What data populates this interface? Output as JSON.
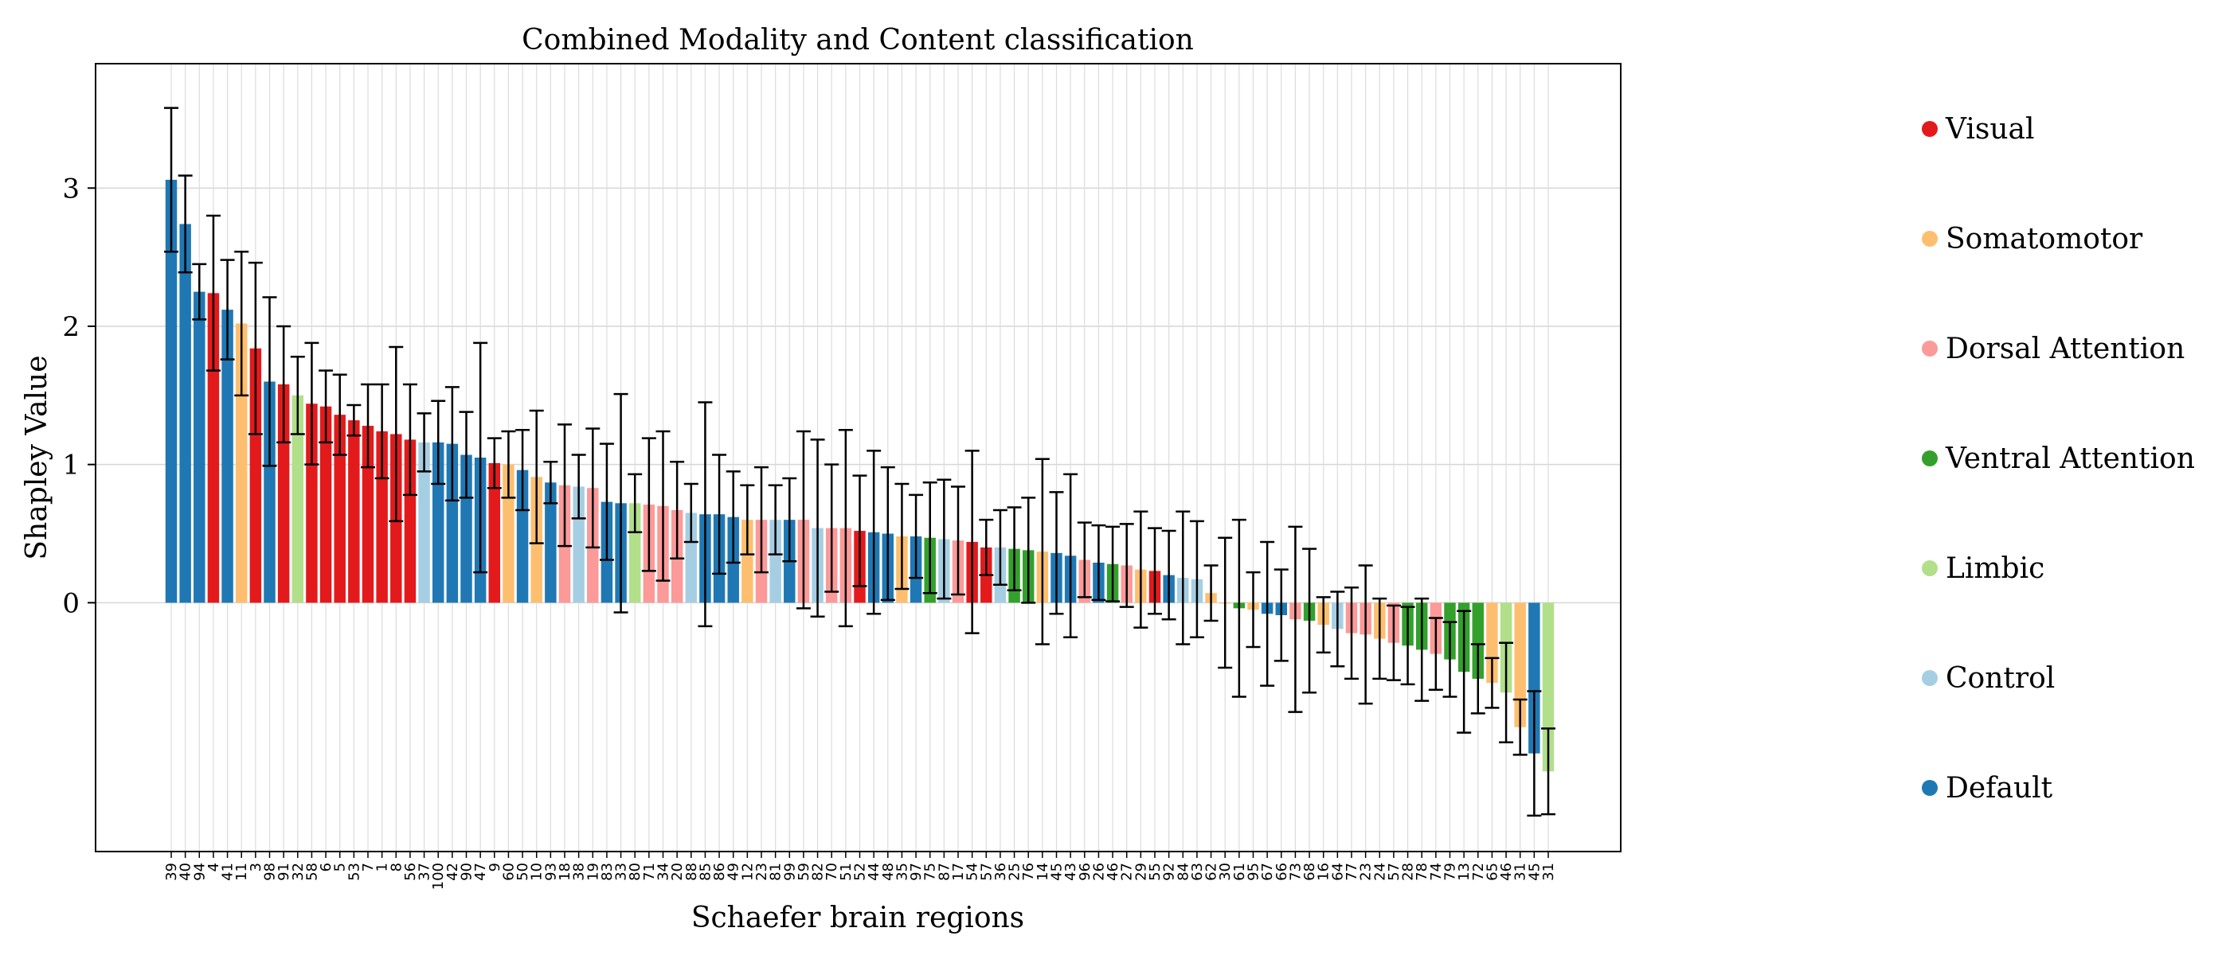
{
  "chart_data": {
    "type": "bar",
    "title": "Combined Modality and Content classification",
    "xlabel": "Schaefer brain regions",
    "ylabel": "Shapley Value",
    "ylim": [
      -1.8,
      3.9
    ],
    "yticks": [
      0,
      1,
      2,
      3
    ],
    "grid": true,
    "legend_position": "right",
    "legend": [
      {
        "label": "Visual",
        "color": "#e31a1c"
      },
      {
        "label": "Somatomotor",
        "color": "#fdbf6f"
      },
      {
        "label": "Dorsal Attention",
        "color": "#fb9a99"
      },
      {
        "label": "Ventral Attention",
        "color": "#33a02c"
      },
      {
        "label": "Limbic",
        "color": "#b2df8a"
      },
      {
        "label": "Control",
        "color": "#a6cee3"
      },
      {
        "label": "Default",
        "color": "#1f78b4"
      }
    ],
    "bars": [
      {
        "label": "39",
        "network": "Default",
        "value": 3.06,
        "err": 0.52
      },
      {
        "label": "40",
        "network": "Default",
        "value": 2.74,
        "err": 0.35
      },
      {
        "label": "94",
        "network": "Default",
        "value": 2.25,
        "err": 0.2
      },
      {
        "label": "4",
        "network": "Visual",
        "value": 2.24,
        "err": 0.56
      },
      {
        "label": "41",
        "network": "Default",
        "value": 2.12,
        "err": 0.36
      },
      {
        "label": "11",
        "network": "Somatomotor",
        "value": 2.02,
        "err": 0.52
      },
      {
        "label": "3",
        "network": "Visual",
        "value": 1.84,
        "err": 0.62
      },
      {
        "label": "98",
        "network": "Default",
        "value": 1.6,
        "err": 0.61
      },
      {
        "label": "91",
        "network": "Visual",
        "value": 1.58,
        "err": 0.42
      },
      {
        "label": "32",
        "network": "Limbic",
        "value": 1.5,
        "err": 0.28
      },
      {
        "label": "58",
        "network": "Visual",
        "value": 1.44,
        "err": 0.44
      },
      {
        "label": "6",
        "network": "Visual",
        "value": 1.42,
        "err": 0.26
      },
      {
        "label": "5",
        "network": "Visual",
        "value": 1.36,
        "err": 0.29
      },
      {
        "label": "53",
        "network": "Visual",
        "value": 1.32,
        "err": 0.11
      },
      {
        "label": "7",
        "network": "Visual",
        "value": 1.28,
        "err": 0.3
      },
      {
        "label": "1",
        "network": "Visual",
        "value": 1.24,
        "err": 0.34
      },
      {
        "label": "8",
        "network": "Visual",
        "value": 1.22,
        "err": 0.63
      },
      {
        "label": "56",
        "network": "Visual",
        "value": 1.18,
        "err": 0.4
      },
      {
        "label": "37",
        "network": "Control",
        "value": 1.16,
        "err": 0.21
      },
      {
        "label": "100",
        "network": "Default",
        "value": 1.16,
        "err": 0.3
      },
      {
        "label": "42",
        "network": "Default",
        "value": 1.15,
        "err": 0.41
      },
      {
        "label": "90",
        "network": "Default",
        "value": 1.07,
        "err": 0.31
      },
      {
        "label": "47",
        "network": "Default",
        "value": 1.05,
        "err": 0.83
      },
      {
        "label": "9",
        "network": "Visual",
        "value": 1.01,
        "err": 0.18
      },
      {
        "label": "60",
        "network": "Somatomotor",
        "value": 1.0,
        "err": 0.24
      },
      {
        "label": "50",
        "network": "Default",
        "value": 0.96,
        "err": 0.29
      },
      {
        "label": "10",
        "network": "Somatomotor",
        "value": 0.91,
        "err": 0.48
      },
      {
        "label": "93",
        "network": "Default",
        "value": 0.87,
        "err": 0.15
      },
      {
        "label": "18",
        "network": "Dorsal Attention",
        "value": 0.85,
        "err": 0.44
      },
      {
        "label": "38",
        "network": "Control",
        "value": 0.84,
        "err": 0.23
      },
      {
        "label": "19",
        "network": "Dorsal Attention",
        "value": 0.83,
        "err": 0.43
      },
      {
        "label": "83",
        "network": "Default",
        "value": 0.73,
        "err": 0.42
      },
      {
        "label": "33",
        "network": "Default",
        "value": 0.72,
        "err": 0.79
      },
      {
        "label": "80",
        "network": "Limbic",
        "value": 0.72,
        "err": 0.21
      },
      {
        "label": "71",
        "network": "Dorsal Attention",
        "value": 0.71,
        "err": 0.48
      },
      {
        "label": "34",
        "network": "Dorsal Attention",
        "value": 0.7,
        "err": 0.54
      },
      {
        "label": "20",
        "network": "Dorsal Attention",
        "value": 0.67,
        "err": 0.35
      },
      {
        "label": "88",
        "network": "Control",
        "value": 0.65,
        "err": 0.21
      },
      {
        "label": "85",
        "network": "Default",
        "value": 0.64,
        "err": 0.81
      },
      {
        "label": "86",
        "network": "Default",
        "value": 0.64,
        "err": 0.43
      },
      {
        "label": "49",
        "network": "Default",
        "value": 0.62,
        "err": 0.33
      },
      {
        "label": "12",
        "network": "Somatomotor",
        "value": 0.6,
        "err": 0.25
      },
      {
        "label": "23",
        "network": "Dorsal Attention",
        "value": 0.6,
        "err": 0.38
      },
      {
        "label": "81",
        "network": "Control",
        "value": 0.6,
        "err": 0.25
      },
      {
        "label": "99",
        "network": "Default",
        "value": 0.6,
        "err": 0.3
      },
      {
        "label": "59",
        "network": "Dorsal Attention",
        "value": 0.6,
        "err": 0.64
      },
      {
        "label": "82",
        "network": "Control",
        "value": 0.54,
        "err": 0.64
      },
      {
        "label": "70",
        "network": "Dorsal Attention",
        "value": 0.54,
        "err": 0.46
      },
      {
        "label": "51",
        "network": "Dorsal Attention",
        "value": 0.54,
        "err": 0.71
      },
      {
        "label": "52",
        "network": "Visual",
        "value": 0.52,
        "err": 0.4
      },
      {
        "label": "44",
        "network": "Default",
        "value": 0.51,
        "err": 0.59
      },
      {
        "label": "48",
        "network": "Default",
        "value": 0.5,
        "err": 0.48
      },
      {
        "label": "35",
        "network": "Somatomotor",
        "value": 0.48,
        "err": 0.38
      },
      {
        "label": "97",
        "network": "Default",
        "value": 0.48,
        "err": 0.3
      },
      {
        "label": "75",
        "network": "Ventral Attention",
        "value": 0.47,
        "err": 0.4
      },
      {
        "label": "87",
        "network": "Control",
        "value": 0.46,
        "err": 0.43
      },
      {
        "label": "17",
        "network": "Dorsal Attention",
        "value": 0.45,
        "err": 0.39
      },
      {
        "label": "54",
        "network": "Visual",
        "value": 0.44,
        "err": 0.66
      },
      {
        "label": "57",
        "network": "Visual",
        "value": 0.4,
        "err": 0.2
      },
      {
        "label": "36",
        "network": "Control",
        "value": 0.4,
        "err": 0.27
      },
      {
        "label": "25",
        "network": "Ventral Attention",
        "value": 0.39,
        "err": 0.3
      },
      {
        "label": "76",
        "network": "Ventral Attention",
        "value": 0.38,
        "err": 0.38
      },
      {
        "label": "14",
        "network": "Somatomotor",
        "value": 0.37,
        "err": 0.67
      },
      {
        "label": "45",
        "network": "Default",
        "value": 0.36,
        "err": 0.44
      },
      {
        "label": "43",
        "network": "Default",
        "value": 0.34,
        "err": 0.59
      },
      {
        "label": "96",
        "network": "Dorsal Attention",
        "value": 0.31,
        "err": 0.27
      },
      {
        "label": "26",
        "network": "Default",
        "value": 0.29,
        "err": 0.27
      },
      {
        "label": "46",
        "network": "Ventral Attention",
        "value": 0.28,
        "err": 0.27
      },
      {
        "label": "27",
        "network": "Dorsal Attention",
        "value": 0.27,
        "err": 0.3
      },
      {
        "label": "29",
        "network": "Somatomotor",
        "value": 0.24,
        "err": 0.42
      },
      {
        "label": "55",
        "network": "Visual",
        "value": 0.23,
        "err": 0.31
      },
      {
        "label": "92",
        "network": "Default",
        "value": 0.2,
        "err": 0.32
      },
      {
        "label": "84",
        "network": "Control",
        "value": 0.18,
        "err": 0.48
      },
      {
        "label": "63",
        "network": "Control",
        "value": 0.17,
        "err": 0.42
      },
      {
        "label": "62",
        "network": "Somatomotor",
        "value": 0.07,
        "err": 0.2
      },
      {
        "label": "30",
        "network": "Somatomotor",
        "value": 0.0,
        "err": 0.47
      },
      {
        "label": "61",
        "network": "Ventral Attention",
        "value": -0.04,
        "err": 0.64
      },
      {
        "label": "95",
        "network": "Somatomotor",
        "value": -0.05,
        "err": 0.27
      },
      {
        "label": "67",
        "network": "Default",
        "value": -0.08,
        "err": 0.52
      },
      {
        "label": "66",
        "network": "Default",
        "value": -0.09,
        "err": 0.33
      },
      {
        "label": "73",
        "network": "Dorsal Attention",
        "value": -0.12,
        "err": 0.67
      },
      {
        "label": "68",
        "network": "Ventral Attention",
        "value": -0.13,
        "err": 0.52
      },
      {
        "label": "16",
        "network": "Somatomotor",
        "value": -0.16,
        "err": 0.2
      },
      {
        "label": "64",
        "network": "Control",
        "value": -0.19,
        "err": 0.27
      },
      {
        "label": "77",
        "network": "Dorsal Attention",
        "value": -0.22,
        "err": 0.33
      },
      {
        "label": "23",
        "network": "Dorsal Attention",
        "value": -0.23,
        "err": 0.5
      },
      {
        "label": "24",
        "network": "Somatomotor",
        "value": -0.26,
        "err": 0.29
      },
      {
        "label": "57",
        "network": "Dorsal Attention",
        "value": -0.29,
        "err": 0.27
      },
      {
        "label": "28",
        "network": "Ventral Attention",
        "value": -0.31,
        "err": 0.28
      },
      {
        "label": "78",
        "network": "Ventral Attention",
        "value": -0.34,
        "err": 0.37
      },
      {
        "label": "74",
        "network": "Dorsal Attention",
        "value": -0.37,
        "err": 0.26
      },
      {
        "label": "79",
        "network": "Ventral Attention",
        "value": -0.41,
        "err": 0.27
      },
      {
        "label": "13",
        "network": "Ventral Attention",
        "value": -0.5,
        "err": 0.44
      },
      {
        "label": "72",
        "network": "Ventral Attention",
        "value": -0.55,
        "err": 0.25
      },
      {
        "label": "65",
        "network": "Somatomotor",
        "value": -0.58,
        "err": 0.18
      },
      {
        "label": "46",
        "network": "Limbic",
        "value": -0.65,
        "err": 0.36
      },
      {
        "label": "31",
        "network": "Somatomotor",
        "value": -0.9,
        "err": 0.2
      },
      {
        "label": "45",
        "network": "Default",
        "value": -1.09,
        "err": 0.45
      },
      {
        "label": "31",
        "network": "Limbic",
        "value": -1.22,
        "err": 0.31
      }
    ]
  }
}
